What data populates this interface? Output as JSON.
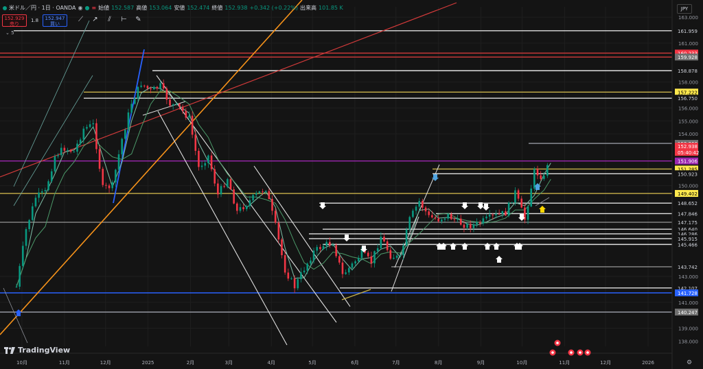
{
  "header": {
    "symbol": "米ドル／円 · 1日 · OANDA",
    "open_label": "始値",
    "open": "152.587",
    "high_label": "高値",
    "high": "153.064",
    "low_label": "安値",
    "low": "152.474",
    "close_label": "終値",
    "close": "152.938",
    "change": "+0.342 (+0.22%)",
    "volume_label": "出来高",
    "volume": "101.85 K"
  },
  "quote": {
    "sell_price": "152.929",
    "sell_label": "売り",
    "spread": "1.8",
    "buy_price": "152.947",
    "buy_label": "買い"
  },
  "indicator_label": "5",
  "currency": "JPY",
  "brand": "TradingView",
  "tools": [
    "trend-line-tool",
    "ray-tool",
    "channel-tool",
    "horizontal-ray-tool",
    "pen-tool"
  ],
  "colors": {
    "background": "#141414",
    "up": "#089981",
    "down": "#f23645",
    "support_blue": "#2962ff",
    "trend_orange": "#f7931a",
    "trend_red": "#d23a3a",
    "purple": "#9c27b0",
    "gold": "#c9b24a"
  },
  "chart_data": {
    "type": "candlestick",
    "title": "米ドル／円 · 1日 · OANDA",
    "y_axis": {
      "range": [
        137.6,
        163.8
      ],
      "ticks": [
        "163.000",
        "161.000",
        "158.000",
        "156.000",
        "155.000",
        "154.000",
        "150.000",
        "143.000",
        "141.000",
        "139.000",
        "138.000"
      ]
    },
    "x_axis": {
      "ticks": [
        "10月",
        "11月",
        "12月",
        "2025",
        "2月",
        "3月",
        "4月",
        "5月",
        "6月",
        "7月",
        "8月",
        "9月",
        "10月",
        "11月",
        "12月",
        "2026"
      ]
    },
    "price_tags": [
      {
        "value": "161.959",
        "style": "white"
      },
      {
        "value": "160.233",
        "style": "red"
      },
      {
        "value": "159.928",
        "style": "gray"
      },
      {
        "value": "158.878",
        "style": "white"
      },
      {
        "value": "157.222",
        "style": "yellow"
      },
      {
        "value": "156.750",
        "style": "white"
      },
      {
        "value": "153.266",
        "style": "gray"
      },
      {
        "value": "152.938",
        "style": "red"
      },
      {
        "value": "05:40:42",
        "style": "red"
      },
      {
        "value": "151.906",
        "style": "purple"
      },
      {
        "value": "151.285",
        "style": "yellow"
      },
      {
        "value": "150.923",
        "style": "white"
      },
      {
        "value": "149.402",
        "style": "yellow"
      },
      {
        "value": "148.652",
        "style": "white"
      },
      {
        "value": "147.846",
        "style": "white"
      },
      {
        "value": "147.175",
        "style": "white"
      },
      {
        "value": "146.640",
        "style": "white"
      },
      {
        "value": "146.286",
        "style": "white"
      },
      {
        "value": "145.915",
        "style": "white"
      },
      {
        "value": "145.466",
        "style": "white"
      },
      {
        "value": "143.742",
        "style": "white"
      },
      {
        "value": "142.107",
        "style": "white"
      },
      {
        "value": "141.728",
        "style": "blue"
      },
      {
        "value": "140.247",
        "style": "gray"
      }
    ],
    "close_path": [
      [
        "2024-09-27",
        142.2
      ],
      [
        "2024-10-04",
        146.6
      ],
      [
        "2024-10-11",
        149.1
      ],
      [
        "2024-10-18",
        149.5
      ],
      [
        "2024-10-25",
        152.3
      ],
      [
        "2024-11-01",
        152.9
      ],
      [
        "2024-11-08",
        152.6
      ],
      [
        "2024-11-15",
        154.4
      ],
      [
        "2024-11-22",
        154.7
      ],
      [
        "2024-11-29",
        149.8
      ],
      [
        "2024-12-06",
        150.0
      ],
      [
        "2024-12-13",
        153.6
      ],
      [
        "2024-12-20",
        156.4
      ],
      [
        "2024-12-27",
        157.9
      ],
      [
        "2025-01-03",
        157.3
      ],
      [
        "2025-01-10",
        157.7
      ],
      [
        "2025-01-17",
        156.3
      ],
      [
        "2025-01-24",
        156.0
      ],
      [
        "2025-01-31",
        155.2
      ],
      [
        "2025-02-07",
        151.4
      ],
      [
        "2025-02-14",
        152.3
      ],
      [
        "2025-02-21",
        149.3
      ],
      [
        "2025-02-28",
        150.6
      ],
      [
        "2025-03-07",
        148.0
      ],
      [
        "2025-03-14",
        148.6
      ],
      [
        "2025-03-21",
        149.3
      ],
      [
        "2025-03-28",
        149.8
      ],
      [
        "2025-04-04",
        146.9
      ],
      [
        "2025-04-11",
        143.5
      ],
      [
        "2025-04-18",
        142.2
      ],
      [
        "2025-04-25",
        143.6
      ],
      [
        "2025-05-02",
        144.9
      ],
      [
        "2025-05-09",
        145.4
      ],
      [
        "2025-05-16",
        145.6
      ],
      [
        "2025-05-23",
        143.1
      ],
      [
        "2025-05-30",
        143.9
      ],
      [
        "2025-06-06",
        144.8
      ],
      [
        "2025-06-13",
        144.1
      ],
      [
        "2025-06-20",
        146.1
      ],
      [
        "2025-06-27",
        144.6
      ],
      [
        "2025-07-04",
        144.4
      ],
      [
        "2025-07-11",
        147.4
      ],
      [
        "2025-07-18",
        148.8
      ],
      [
        "2025-07-25",
        147.6
      ],
      [
        "2025-08-01",
        147.4
      ],
      [
        "2025-08-08",
        147.7
      ],
      [
        "2025-08-15",
        147.2
      ],
      [
        "2025-08-22",
        146.9
      ],
      [
        "2025-08-29",
        147.0
      ],
      [
        "2025-09-05",
        147.4
      ],
      [
        "2025-09-12",
        147.7
      ],
      [
        "2025-09-19",
        147.9
      ],
      [
        "2025-09-26",
        149.5
      ],
      [
        "2025-10-03",
        147.4
      ],
      [
        "2025-10-10",
        151.1
      ],
      [
        "2025-10-17",
        150.6
      ],
      [
        "2025-10-22",
        152.9
      ]
    ]
  }
}
